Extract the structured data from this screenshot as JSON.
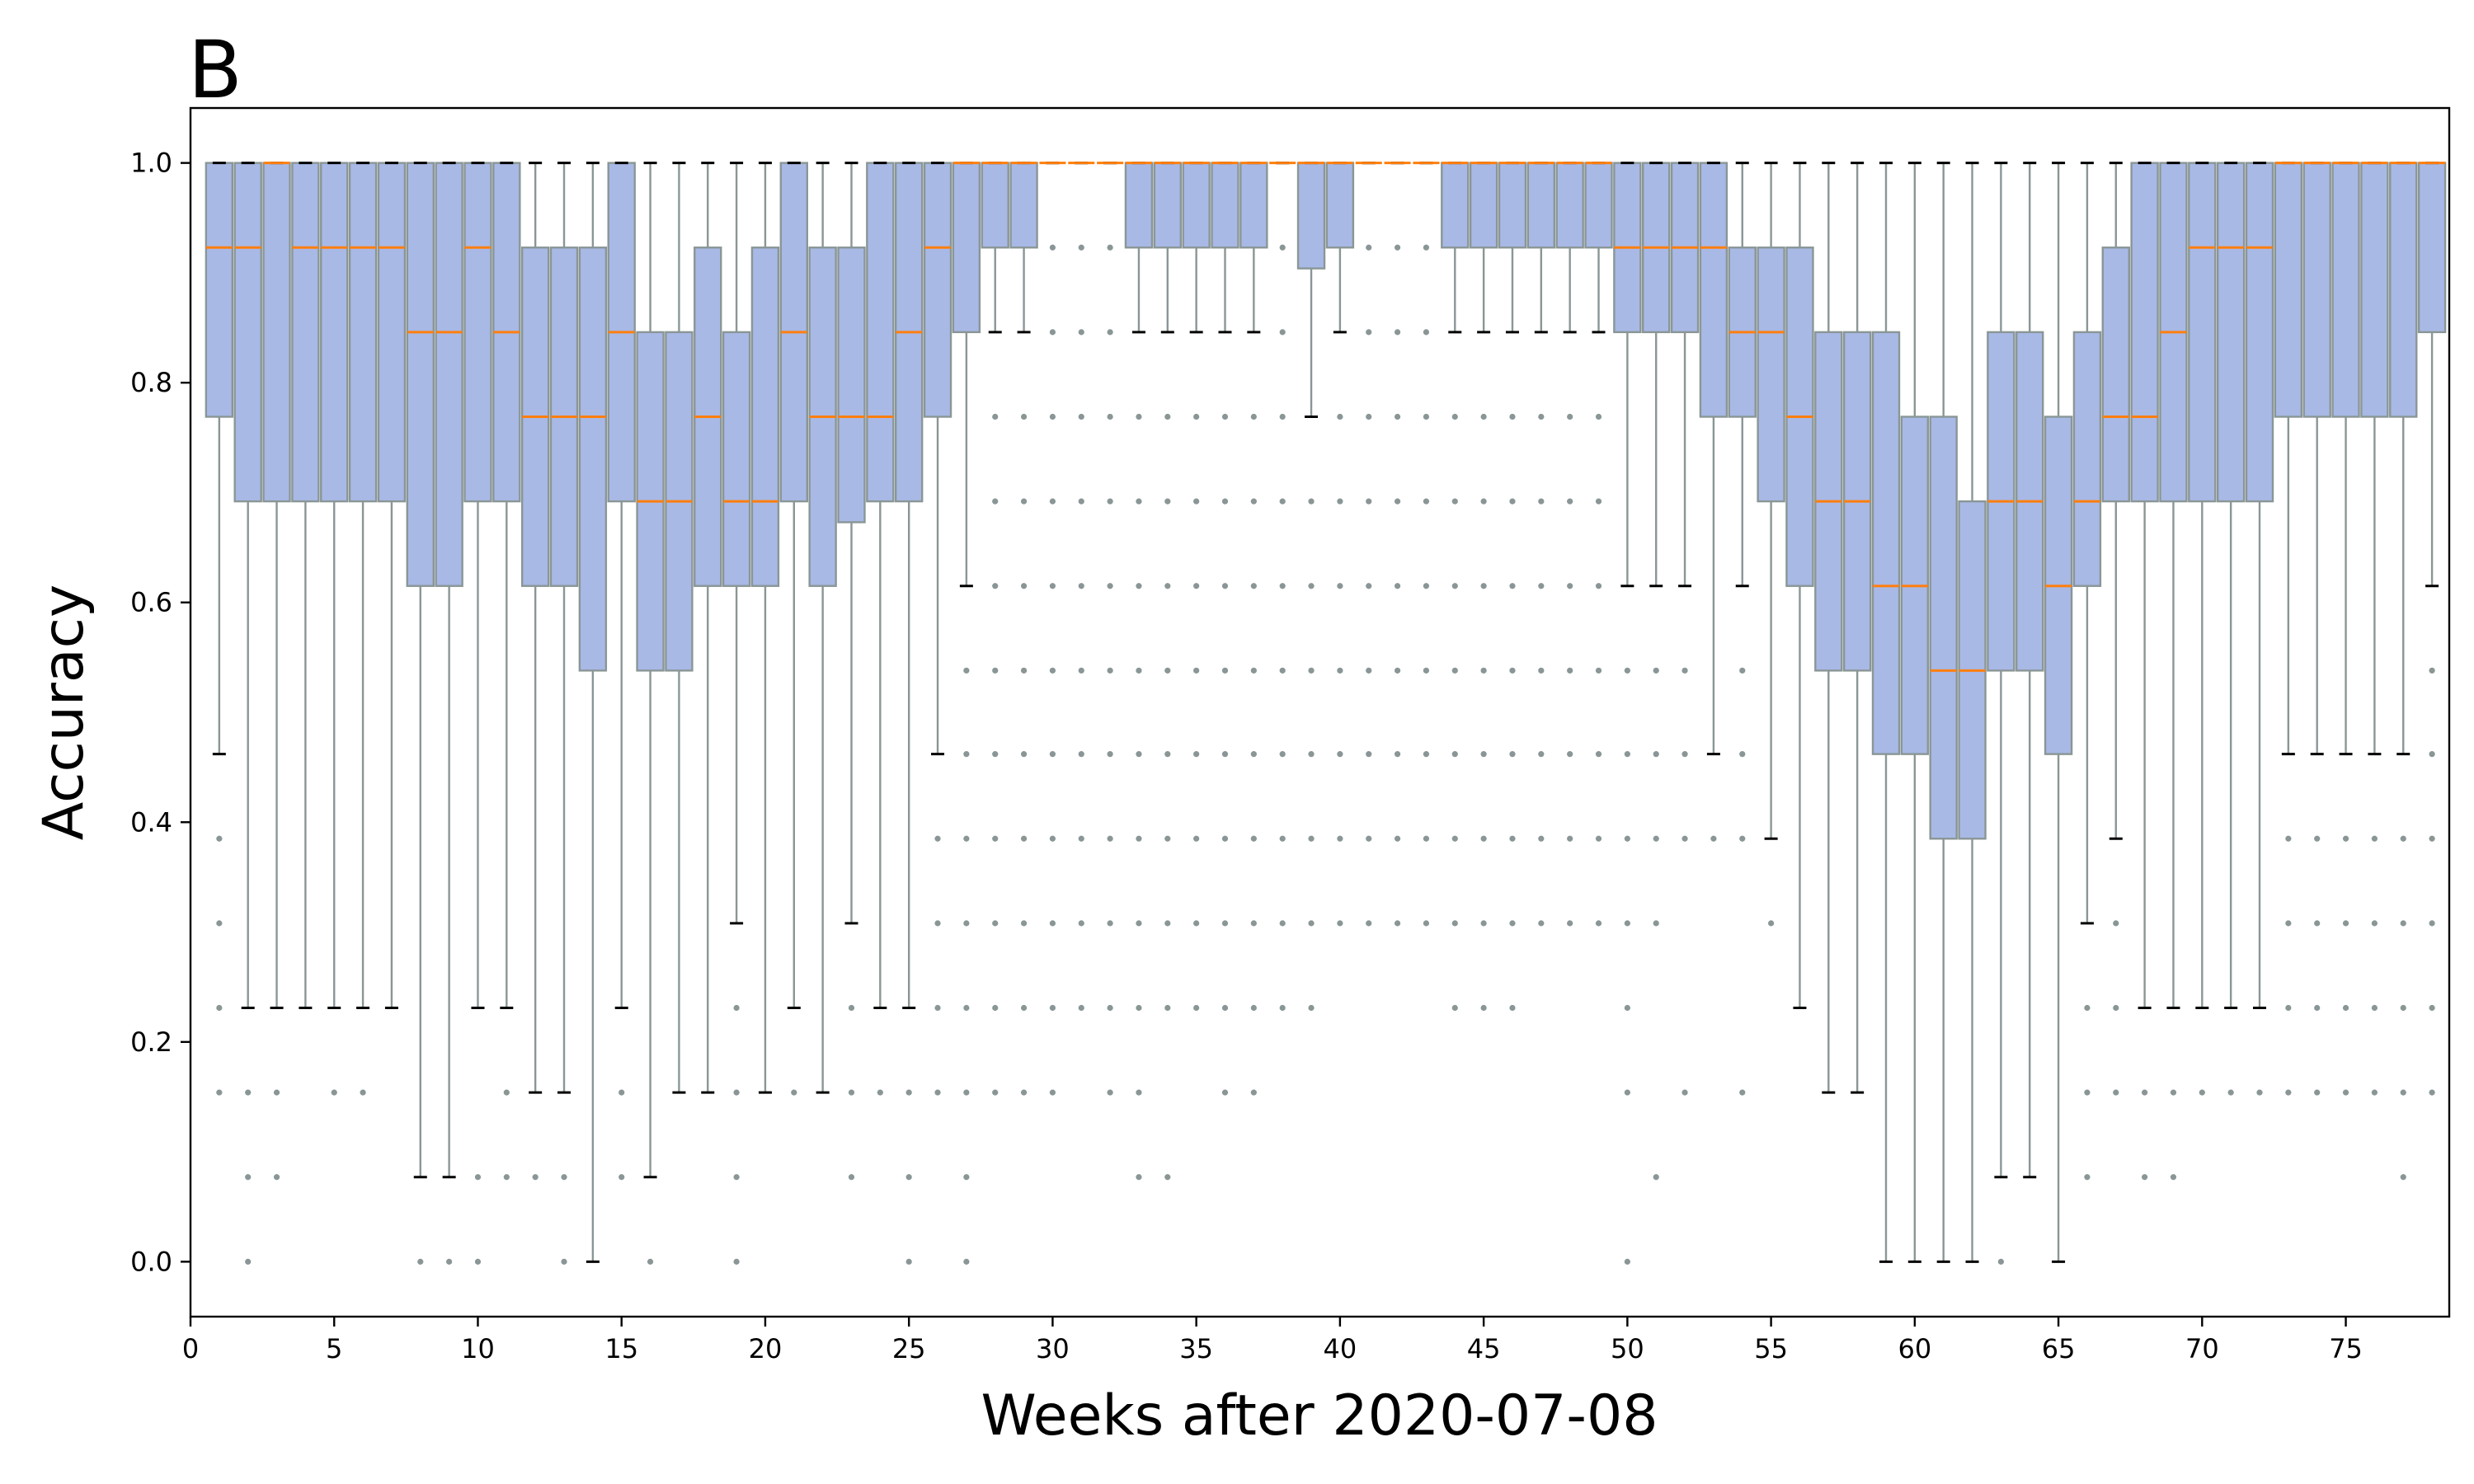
{
  "panel_label": "B",
  "chart_data": {
    "type": "box",
    "xlabel": "Weeks after 2020-07-08",
    "ylabel": "Accuracy",
    "xlim": [
      0,
      78.6
    ],
    "ylim": [
      -0.05,
      1.05
    ],
    "xticks": [
      0,
      5,
      10,
      15,
      20,
      25,
      30,
      35,
      40,
      45,
      50,
      55,
      60,
      65,
      70,
      75
    ],
    "yticks": [
      0.0,
      0.2,
      0.4,
      0.6,
      0.8,
      1.0
    ],
    "ytick_labels": [
      "0.0",
      "0.2",
      "0.4",
      "0.6",
      "0.8",
      "1.0"
    ],
    "grid": false,
    "colors": {
      "box_fill": "#a8b9e6",
      "box_edge": "#8a9696",
      "median": "#ff7f0e",
      "whisker_cap": "#000000",
      "flier": "#8a9696"
    },
    "boxes": [
      {
        "x": 1,
        "q1": 0.769,
        "med": 0.923,
        "q3": 1.0,
        "wlo": 0.462,
        "whi": 1.0,
        "fliers": [
          0.385,
          0.308,
          0.231,
          0.154
        ]
      },
      {
        "x": 2,
        "q1": 0.692,
        "med": 0.923,
        "q3": 1.0,
        "wlo": 0.231,
        "whi": 1.0,
        "fliers": [
          0.154,
          0.077,
          0.0
        ]
      },
      {
        "x": 3,
        "q1": 0.692,
        "med": 1.0,
        "q3": 1.0,
        "wlo": 0.231,
        "whi": 1.0,
        "fliers": [
          0.154,
          0.077
        ]
      },
      {
        "x": 4,
        "q1": 0.692,
        "med": 0.923,
        "q3": 1.0,
        "wlo": 0.231,
        "whi": 1.0,
        "fliers": []
      },
      {
        "x": 5,
        "q1": 0.692,
        "med": 0.923,
        "q3": 1.0,
        "wlo": 0.231,
        "whi": 1.0,
        "fliers": [
          0.154
        ]
      },
      {
        "x": 6,
        "q1": 0.692,
        "med": 0.923,
        "q3": 1.0,
        "wlo": 0.231,
        "whi": 1.0,
        "fliers": [
          0.154
        ]
      },
      {
        "x": 7,
        "q1": 0.692,
        "med": 0.923,
        "q3": 1.0,
        "wlo": 0.231,
        "whi": 1.0,
        "fliers": []
      },
      {
        "x": 8,
        "q1": 0.615,
        "med": 0.846,
        "q3": 1.0,
        "wlo": 0.077,
        "whi": 1.0,
        "fliers": [
          0.0
        ]
      },
      {
        "x": 9,
        "q1": 0.615,
        "med": 0.846,
        "q3": 1.0,
        "wlo": 0.077,
        "whi": 1.0,
        "fliers": [
          0.0
        ]
      },
      {
        "x": 10,
        "q1": 0.692,
        "med": 0.923,
        "q3": 1.0,
        "wlo": 0.231,
        "whi": 1.0,
        "fliers": [
          0.077,
          0.0
        ]
      },
      {
        "x": 11,
        "q1": 0.692,
        "med": 0.846,
        "q3": 1.0,
        "wlo": 0.231,
        "whi": 1.0,
        "fliers": [
          0.154,
          0.077
        ]
      },
      {
        "x": 12,
        "q1": 0.615,
        "med": 0.769,
        "q3": 0.923,
        "wlo": 0.154,
        "whi": 1.0,
        "fliers": [
          0.077
        ]
      },
      {
        "x": 13,
        "q1": 0.615,
        "med": 0.769,
        "q3": 0.923,
        "wlo": 0.154,
        "whi": 1.0,
        "fliers": [
          0.077,
          0.0
        ]
      },
      {
        "x": 14,
        "q1": 0.538,
        "med": 0.769,
        "q3": 0.923,
        "wlo": 0.0,
        "whi": 1.0,
        "fliers": []
      },
      {
        "x": 15,
        "q1": 0.692,
        "med": 0.846,
        "q3": 1.0,
        "wlo": 0.231,
        "whi": 1.0,
        "fliers": [
          0.154,
          0.077
        ]
      },
      {
        "x": 16,
        "q1": 0.538,
        "med": 0.692,
        "q3": 0.846,
        "wlo": 0.077,
        "whi": 1.0,
        "fliers": [
          0.0
        ]
      },
      {
        "x": 17,
        "q1": 0.538,
        "med": 0.692,
        "q3": 0.846,
        "wlo": 0.154,
        "whi": 1.0,
        "fliers": []
      },
      {
        "x": 18,
        "q1": 0.615,
        "med": 0.769,
        "q3": 0.923,
        "wlo": 0.154,
        "whi": 1.0,
        "fliers": []
      },
      {
        "x": 19,
        "q1": 0.615,
        "med": 0.692,
        "q3": 0.846,
        "wlo": 0.308,
        "whi": 1.0,
        "fliers": [
          0.231,
          0.154,
          0.077,
          0.0
        ]
      },
      {
        "x": 20,
        "q1": 0.615,
        "med": 0.692,
        "q3": 0.923,
        "wlo": 0.154,
        "whi": 1.0,
        "fliers": []
      },
      {
        "x": 21,
        "q1": 0.692,
        "med": 0.846,
        "q3": 1.0,
        "wlo": 0.231,
        "whi": 1.0,
        "fliers": [
          0.154
        ]
      },
      {
        "x": 22,
        "q1": 0.615,
        "med": 0.769,
        "q3": 0.923,
        "wlo": 0.154,
        "whi": 1.0,
        "fliers": []
      },
      {
        "x": 23,
        "q1": 0.673,
        "med": 0.769,
        "q3": 0.923,
        "wlo": 0.308,
        "whi": 1.0,
        "fliers": [
          0.231,
          0.154,
          0.077
        ]
      },
      {
        "x": 24,
        "q1": 0.692,
        "med": 0.769,
        "q3": 1.0,
        "wlo": 0.231,
        "whi": 1.0,
        "fliers": [
          0.154
        ]
      },
      {
        "x": 25,
        "q1": 0.692,
        "med": 0.846,
        "q3": 1.0,
        "wlo": 0.231,
        "whi": 1.0,
        "fliers": [
          0.154,
          0.077,
          0.0
        ]
      },
      {
        "x": 26,
        "q1": 0.769,
        "med": 0.923,
        "q3": 1.0,
        "wlo": 0.462,
        "whi": 1.0,
        "fliers": [
          0.385,
          0.308,
          0.231,
          0.154
        ]
      },
      {
        "x": 27,
        "q1": 0.846,
        "med": 1.0,
        "q3": 1.0,
        "wlo": 0.615,
        "whi": 1.0,
        "fliers": [
          0.538,
          0.462,
          0.385,
          0.308,
          0.231,
          0.154,
          0.077,
          0.0
        ]
      },
      {
        "x": 28,
        "q1": 0.923,
        "med": 1.0,
        "q3": 1.0,
        "wlo": 0.846,
        "whi": 1.0,
        "fliers": [
          0.769,
          0.692,
          0.615,
          0.538,
          0.462,
          0.385,
          0.308,
          0.231,
          0.154
        ]
      },
      {
        "x": 29,
        "q1": 0.923,
        "med": 1.0,
        "q3": 1.0,
        "wlo": 0.846,
        "whi": 1.0,
        "fliers": [
          0.769,
          0.692,
          0.615,
          0.538,
          0.462,
          0.385,
          0.308,
          0.231,
          0.154
        ]
      },
      {
        "x": 30,
        "q1": 1.0,
        "med": 1.0,
        "q3": 1.0,
        "wlo": 1.0,
        "whi": 1.0,
        "fliers": [
          0.923,
          0.846,
          0.769,
          0.692,
          0.615,
          0.538,
          0.462,
          0.385,
          0.308,
          0.231,
          0.154
        ]
      },
      {
        "x": 31,
        "q1": 1.0,
        "med": 1.0,
        "q3": 1.0,
        "wlo": 1.0,
        "whi": 1.0,
        "fliers": [
          0.923,
          0.846,
          0.769,
          0.692,
          0.615,
          0.538,
          0.462,
          0.385,
          0.308,
          0.231
        ]
      },
      {
        "x": 32,
        "q1": 1.0,
        "med": 1.0,
        "q3": 1.0,
        "wlo": 1.0,
        "whi": 1.0,
        "fliers": [
          0.923,
          0.846,
          0.769,
          0.692,
          0.615,
          0.538,
          0.462,
          0.385,
          0.308,
          0.231,
          0.154
        ]
      },
      {
        "x": 33,
        "q1": 0.923,
        "med": 1.0,
        "q3": 1.0,
        "wlo": 0.846,
        "whi": 1.0,
        "fliers": [
          0.769,
          0.692,
          0.615,
          0.538,
          0.462,
          0.385,
          0.308,
          0.231,
          0.154,
          0.077
        ]
      },
      {
        "x": 34,
        "q1": 0.923,
        "med": 1.0,
        "q3": 1.0,
        "wlo": 0.846,
        "whi": 1.0,
        "fliers": [
          0.769,
          0.692,
          0.615,
          0.538,
          0.462,
          0.385,
          0.308,
          0.231,
          0.077
        ]
      },
      {
        "x": 35,
        "q1": 0.923,
        "med": 1.0,
        "q3": 1.0,
        "wlo": 0.846,
        "whi": 1.0,
        "fliers": [
          0.769,
          0.692,
          0.615,
          0.538,
          0.462,
          0.385,
          0.308,
          0.231
        ]
      },
      {
        "x": 36,
        "q1": 0.923,
        "med": 1.0,
        "q3": 1.0,
        "wlo": 0.846,
        "whi": 1.0,
        "fliers": [
          0.769,
          0.692,
          0.615,
          0.538,
          0.462,
          0.385,
          0.308,
          0.231,
          0.154
        ]
      },
      {
        "x": 37,
        "q1": 0.923,
        "med": 1.0,
        "q3": 1.0,
        "wlo": 0.846,
        "whi": 1.0,
        "fliers": [
          0.769,
          0.692,
          0.615,
          0.538,
          0.462,
          0.385,
          0.308,
          0.231,
          0.154
        ]
      },
      {
        "x": 38,
        "q1": 1.0,
        "med": 1.0,
        "q3": 1.0,
        "wlo": 1.0,
        "whi": 1.0,
        "fliers": [
          0.923,
          0.846,
          0.769,
          0.692,
          0.615,
          0.538,
          0.462,
          0.385,
          0.308,
          0.231
        ]
      },
      {
        "x": 39,
        "q1": 0.904,
        "med": 1.0,
        "q3": 1.0,
        "wlo": 0.769,
        "whi": 1.0,
        "fliers": [
          0.692,
          0.615,
          0.538,
          0.462,
          0.385,
          0.308,
          0.231
        ]
      },
      {
        "x": 40,
        "q1": 0.923,
        "med": 1.0,
        "q3": 1.0,
        "wlo": 0.846,
        "whi": 1.0,
        "fliers": [
          0.769,
          0.692,
          0.615,
          0.538,
          0.462,
          0.385,
          0.308
        ]
      },
      {
        "x": 41,
        "q1": 1.0,
        "med": 1.0,
        "q3": 1.0,
        "wlo": 1.0,
        "whi": 1.0,
        "fliers": [
          0.923,
          0.846,
          0.769,
          0.692,
          0.615,
          0.538,
          0.462,
          0.385,
          0.308
        ]
      },
      {
        "x": 42,
        "q1": 1.0,
        "med": 1.0,
        "q3": 1.0,
        "wlo": 1.0,
        "whi": 1.0,
        "fliers": [
          0.923,
          0.846,
          0.769,
          0.692,
          0.615,
          0.538,
          0.462,
          0.385,
          0.308
        ]
      },
      {
        "x": 43,
        "q1": 1.0,
        "med": 1.0,
        "q3": 1.0,
        "wlo": 1.0,
        "whi": 1.0,
        "fliers": [
          0.923,
          0.846,
          0.769,
          0.692,
          0.615,
          0.538,
          0.462,
          0.385,
          0.308
        ]
      },
      {
        "x": 44,
        "q1": 0.923,
        "med": 1.0,
        "q3": 1.0,
        "wlo": 0.846,
        "whi": 1.0,
        "fliers": [
          0.769,
          0.692,
          0.615,
          0.538,
          0.462,
          0.385,
          0.308,
          0.231
        ]
      },
      {
        "x": 45,
        "q1": 0.923,
        "med": 1.0,
        "q3": 1.0,
        "wlo": 0.846,
        "whi": 1.0,
        "fliers": [
          0.769,
          0.692,
          0.615,
          0.538,
          0.462,
          0.385,
          0.308,
          0.231
        ]
      },
      {
        "x": 46,
        "q1": 0.923,
        "med": 1.0,
        "q3": 1.0,
        "wlo": 0.846,
        "whi": 1.0,
        "fliers": [
          0.769,
          0.692,
          0.615,
          0.538,
          0.462,
          0.385,
          0.308,
          0.231
        ]
      },
      {
        "x": 47,
        "q1": 0.923,
        "med": 1.0,
        "q3": 1.0,
        "wlo": 0.846,
        "whi": 1.0,
        "fliers": [
          0.769,
          0.692,
          0.615,
          0.538,
          0.462,
          0.385,
          0.308
        ]
      },
      {
        "x": 48,
        "q1": 0.923,
        "med": 1.0,
        "q3": 1.0,
        "wlo": 0.846,
        "whi": 1.0,
        "fliers": [
          0.769,
          0.692,
          0.615,
          0.538,
          0.462,
          0.385,
          0.308
        ]
      },
      {
        "x": 49,
        "q1": 0.923,
        "med": 1.0,
        "q3": 1.0,
        "wlo": 0.846,
        "whi": 1.0,
        "fliers": [
          0.769,
          0.692,
          0.615,
          0.538,
          0.462,
          0.385,
          0.308
        ]
      },
      {
        "x": 50,
        "q1": 0.846,
        "med": 0.923,
        "q3": 1.0,
        "wlo": 0.615,
        "whi": 1.0,
        "fliers": [
          0.538,
          0.462,
          0.385,
          0.308,
          0.231,
          0.154,
          0.0
        ]
      },
      {
        "x": 51,
        "q1": 0.846,
        "med": 0.923,
        "q3": 1.0,
        "wlo": 0.615,
        "whi": 1.0,
        "fliers": [
          0.538,
          0.462,
          0.385,
          0.308,
          0.077
        ]
      },
      {
        "x": 52,
        "q1": 0.846,
        "med": 0.923,
        "q3": 1.0,
        "wlo": 0.615,
        "whi": 1.0,
        "fliers": [
          0.538,
          0.462,
          0.385,
          0.154
        ]
      },
      {
        "x": 53,
        "q1": 0.769,
        "med": 0.923,
        "q3": 1.0,
        "wlo": 0.462,
        "whi": 1.0,
        "fliers": [
          0.385
        ]
      },
      {
        "x": 54,
        "q1": 0.769,
        "med": 0.846,
        "q3": 0.923,
        "wlo": 0.615,
        "whi": 1.0,
        "fliers": [
          0.538,
          0.462,
          0.385,
          0.154
        ]
      },
      {
        "x": 55,
        "q1": 0.692,
        "med": 0.846,
        "q3": 0.923,
        "wlo": 0.385,
        "whi": 1.0,
        "fliers": [
          0.308
        ]
      },
      {
        "x": 56,
        "q1": 0.615,
        "med": 0.769,
        "q3": 0.923,
        "wlo": 0.231,
        "whi": 1.0,
        "fliers": []
      },
      {
        "x": 57,
        "q1": 0.538,
        "med": 0.692,
        "q3": 0.846,
        "wlo": 0.154,
        "whi": 1.0,
        "fliers": []
      },
      {
        "x": 58,
        "q1": 0.538,
        "med": 0.692,
        "q3": 0.846,
        "wlo": 0.154,
        "whi": 1.0,
        "fliers": []
      },
      {
        "x": 59,
        "q1": 0.462,
        "med": 0.615,
        "q3": 0.846,
        "wlo": 0.0,
        "whi": 1.0,
        "fliers": []
      },
      {
        "x": 60,
        "q1": 0.462,
        "med": 0.615,
        "q3": 0.769,
        "wlo": 0.0,
        "whi": 1.0,
        "fliers": []
      },
      {
        "x": 61,
        "q1": 0.385,
        "med": 0.538,
        "q3": 0.769,
        "wlo": 0.0,
        "whi": 1.0,
        "fliers": []
      },
      {
        "x": 62,
        "q1": 0.385,
        "med": 0.538,
        "q3": 0.692,
        "wlo": 0.0,
        "whi": 1.0,
        "fliers": []
      },
      {
        "x": 63,
        "q1": 0.538,
        "med": 0.692,
        "q3": 0.846,
        "wlo": 0.077,
        "whi": 1.0,
        "fliers": [
          0.0
        ]
      },
      {
        "x": 64,
        "q1": 0.538,
        "med": 0.692,
        "q3": 0.846,
        "wlo": 0.077,
        "whi": 1.0,
        "fliers": []
      },
      {
        "x": 65,
        "q1": 0.462,
        "med": 0.615,
        "q3": 0.769,
        "wlo": 0.0,
        "whi": 1.0,
        "fliers": []
      },
      {
        "x": 66,
        "q1": 0.615,
        "med": 0.692,
        "q3": 0.846,
        "wlo": 0.308,
        "whi": 1.0,
        "fliers": [
          0.231,
          0.154,
          0.077
        ]
      },
      {
        "x": 67,
        "q1": 0.692,
        "med": 0.769,
        "q3": 0.923,
        "wlo": 0.385,
        "whi": 1.0,
        "fliers": [
          0.308,
          0.231,
          0.154
        ]
      },
      {
        "x": 68,
        "q1": 0.692,
        "med": 0.769,
        "q3": 1.0,
        "wlo": 0.231,
        "whi": 1.0,
        "fliers": [
          0.154,
          0.077
        ]
      },
      {
        "x": 69,
        "q1": 0.692,
        "med": 0.846,
        "q3": 1.0,
        "wlo": 0.231,
        "whi": 1.0,
        "fliers": [
          0.154,
          0.077
        ]
      },
      {
        "x": 70,
        "q1": 0.692,
        "med": 0.923,
        "q3": 1.0,
        "wlo": 0.231,
        "whi": 1.0,
        "fliers": [
          0.154
        ]
      },
      {
        "x": 71,
        "q1": 0.692,
        "med": 0.923,
        "q3": 1.0,
        "wlo": 0.231,
        "whi": 1.0,
        "fliers": [
          0.154
        ]
      },
      {
        "x": 72,
        "q1": 0.692,
        "med": 0.923,
        "q3": 1.0,
        "wlo": 0.231,
        "whi": 1.0,
        "fliers": [
          0.154
        ]
      },
      {
        "x": 73,
        "q1": 0.769,
        "med": 1.0,
        "q3": 1.0,
        "wlo": 0.462,
        "whi": 1.0,
        "fliers": [
          0.385,
          0.308,
          0.231,
          0.154
        ]
      },
      {
        "x": 74,
        "q1": 0.769,
        "med": 1.0,
        "q3": 1.0,
        "wlo": 0.462,
        "whi": 1.0,
        "fliers": [
          0.385,
          0.308,
          0.231,
          0.154
        ]
      },
      {
        "x": 75,
        "q1": 0.769,
        "med": 1.0,
        "q3": 1.0,
        "wlo": 0.462,
        "whi": 1.0,
        "fliers": [
          0.385,
          0.308,
          0.231,
          0.154
        ]
      },
      {
        "x": 76,
        "q1": 0.769,
        "med": 1.0,
        "q3": 1.0,
        "wlo": 0.462,
        "whi": 1.0,
        "fliers": [
          0.385,
          0.308,
          0.231,
          0.154
        ]
      },
      {
        "x": 77,
        "q1": 0.769,
        "med": 1.0,
        "q3": 1.0,
        "wlo": 0.462,
        "whi": 1.0,
        "fliers": [
          0.385,
          0.308,
          0.231,
          0.154,
          0.077
        ]
      },
      {
        "x": 78,
        "q1": 0.846,
        "med": 1.0,
        "q3": 1.0,
        "wlo": 0.615,
        "whi": 1.0,
        "fliers": [
          0.538,
          0.462,
          0.385,
          0.308,
          0.231,
          0.154
        ]
      }
    ]
  }
}
